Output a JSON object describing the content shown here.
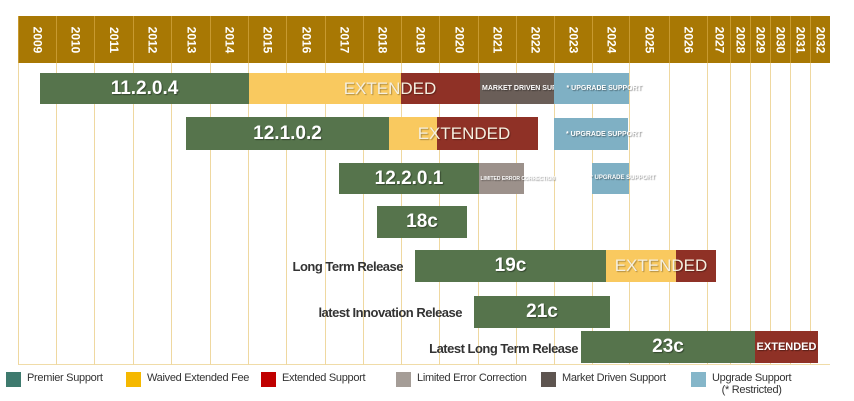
{
  "years": [
    "2009",
    "2010",
    "2011",
    "2012",
    "2013",
    "2014",
    "2015",
    "2016",
    "2017",
    "2018",
    "2019",
    "2020",
    "2021",
    "2022",
    "2023",
    "2024",
    "2025",
    "2026",
    "2027",
    "2028",
    "2029",
    "2030",
    "2031",
    "2032"
  ],
  "colors": {
    "header": "#a87804",
    "premier": "#56744c",
    "waived": "#f9c95f",
    "extended": "#8f3126",
    "market": "#6a5e58",
    "limited": "#9c918b",
    "upgrade": "#7fb0c4"
  },
  "releases": {
    "r11": {
      "name": "11.2.0.4",
      "extended": "EXTENDED",
      "market": "MARKET DRIVEN SUPPORT",
      "upgrade": "* UPGRADE SUPPORT"
    },
    "r121": {
      "name": "12.1.0.2",
      "extended": "EXTENDED",
      "upgrade": "* UPGRADE SUPPORT"
    },
    "r122": {
      "name": "12.2.0.1",
      "limited": "LIMITED ERROR CORRECTION",
      "upgrade": "* UPGRADE SUPPORT"
    },
    "r18": {
      "name": "18c"
    },
    "r19": {
      "label": "Long Term Release",
      "name": "19c",
      "extended": "EXTENDED"
    },
    "r21": {
      "label": "latest Innovation Release",
      "name": "21c"
    },
    "r23": {
      "label": "Latest Long Term Release",
      "name": "23c",
      "extended": "EXTENDED"
    }
  },
  "legend": [
    {
      "label": "Premier Support",
      "color": "#3e7a6e"
    },
    {
      "label": "Waived Extended Fee",
      "color": "#f5b800"
    },
    {
      "label": "Extended Support",
      "color": "#c00000"
    },
    {
      "label": "Limited Error Correction",
      "color": "#a59d97"
    },
    {
      "label": "Market Driven Support",
      "color": "#5e5550"
    },
    {
      "label": "Upgrade Support",
      "note": "(* Restricted)",
      "color": "#85b6c9"
    }
  ]
}
